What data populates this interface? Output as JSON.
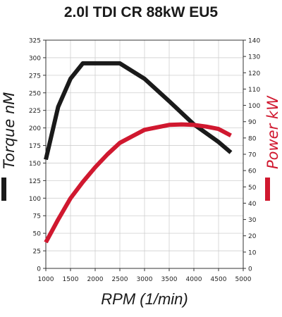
{
  "chart_data": {
    "type": "line",
    "title": "2.0l TDI CR 88kW EU5",
    "xlabel": "RPM (1/min)",
    "ylabel_left": "Torque nM",
    "ylabel_right": "Power kW",
    "xlim": [
      1000,
      5000
    ],
    "ylim_left": [
      0,
      325
    ],
    "ylim_right": [
      0,
      140
    ],
    "x_ticks": [
      "1000",
      "1500",
      "2000",
      "2500",
      "3000",
      "3500",
      "4000",
      "4500",
      "5000"
    ],
    "y_left_ticks": [
      "0",
      "25",
      "50",
      "75",
      "100",
      "125",
      "150",
      "175",
      "200",
      "225",
      "250",
      "275",
      "300",
      "325"
    ],
    "y_right_ticks": [
      "0",
      "10",
      "20",
      "30",
      "40",
      "50",
      "60",
      "70",
      "80",
      "90",
      "100",
      "110",
      "120",
      "130",
      "140"
    ],
    "grid": true,
    "series": [
      {
        "name": "Torque nM",
        "axis": "left",
        "color": "#1a1a1a",
        "x": [
          1000,
          1250,
          1500,
          1750,
          2000,
          2250,
          2500,
          3000,
          3500,
          4000,
          4500,
          4750
        ],
        "y": [
          155,
          230,
          270,
          292,
          292,
          292,
          292,
          270,
          238,
          205,
          180,
          165
        ]
      },
      {
        "name": "Power kW",
        "axis": "right",
        "color": "#d0182f",
        "x": [
          1000,
          1250,
          1500,
          1750,
          2000,
          2250,
          2500,
          2750,
          3000,
          3250,
          3500,
          3750,
          4000,
          4250,
          4500,
          4750
        ],
        "y": [
          16,
          30,
          43,
          53,
          62,
          70,
          77,
          81,
          85,
          86.5,
          88,
          88.3,
          88,
          87,
          85.5,
          81.5
        ]
      }
    ]
  }
}
